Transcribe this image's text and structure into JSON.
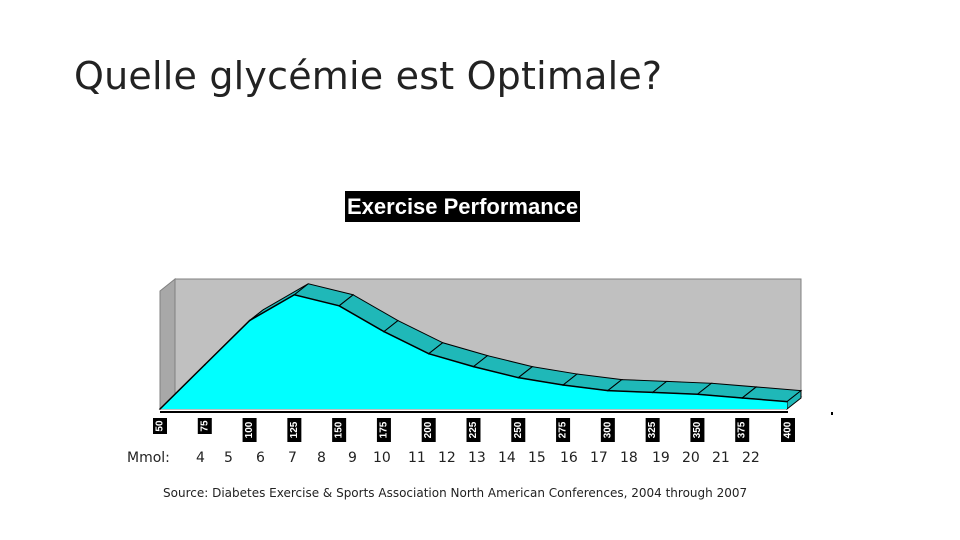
{
  "slide": {
    "title": "Quelle glycémie est Optimale?",
    "mmol_label": "Mmol:",
    "mmol_values": [
      "4",
      "5",
      "6",
      "7",
      "8",
      "9",
      "10",
      "11",
      "12",
      "13",
      "14",
      "15",
      "16",
      "17",
      "18",
      "19",
      "20",
      "21",
      "22"
    ],
    "source": "Source: Diabetes Exercise & Sports Association North American Conferences, 2004 through 2007"
  },
  "chart_data": {
    "type": "area",
    "title": "Exercise Performance",
    "x": [
      "50",
      "75",
      "100",
      "125",
      "150",
      "175",
      "200",
      "225",
      "250",
      "275",
      "300",
      "325",
      "350",
      "375",
      "400"
    ],
    "series": [
      {
        "values": [
          0,
          24,
          48,
          62,
          56,
          42,
          30,
          23,
          17,
          13,
          10,
          9,
          8,
          6,
          4
        ]
      }
    ],
    "ylim": [
      0,
      70
    ],
    "grid": false,
    "legend": "none",
    "colors": {
      "area_face": "#00ffff",
      "area_top": "#1fb8b8",
      "wall": "#c0c0c0",
      "outline": "#000000"
    }
  }
}
